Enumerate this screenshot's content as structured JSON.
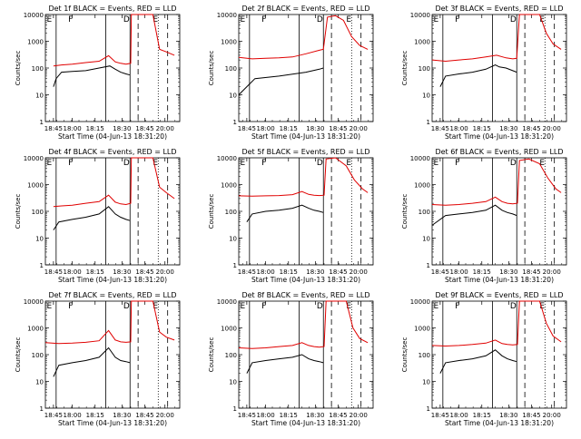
{
  "chart_data": [
    {
      "type": "line",
      "title": "Det 1f  BLACK = Events, RED = LLD",
      "xlabel": "Start Time (04-Jun-13 18:31:20)",
      "ylabel": "Counts/sec",
      "yscale": "log",
      "ylim": [
        1,
        10000
      ],
      "x_ticks": [
        "18:45",
        "18:00",
        "18:15",
        "18:30",
        "18:45",
        "20:00"
      ],
      "y_ticks": [
        "1",
        "10",
        "100",
        "1000",
        "10000"
      ],
      "markers": [
        "E",
        "F",
        "D",
        "E"
      ],
      "black": [
        [
          0.06,
          20
        ],
        [
          0.08,
          40
        ],
        [
          0.12,
          70
        ],
        [
          0.2,
          75
        ],
        [
          0.3,
          80
        ],
        [
          0.4,
          100
        ],
        [
          0.48,
          120
        ],
        [
          0.52,
          90
        ],
        [
          0.56,
          70
        ],
        [
          0.6,
          60
        ],
        [
          0.63,
          55
        ]
      ],
      "red": [
        [
          0.06,
          120
        ],
        [
          0.12,
          130
        ],
        [
          0.2,
          140
        ],
        [
          0.3,
          160
        ],
        [
          0.4,
          180
        ],
        [
          0.47,
          290
        ],
        [
          0.52,
          170
        ],
        [
          0.56,
          150
        ],
        [
          0.6,
          140
        ],
        [
          0.635,
          150
        ],
        [
          0.64,
          10000
        ],
        [
          0.8,
          10000
        ],
        [
          0.85,
          500
        ],
        [
          0.9,
          400
        ],
        [
          0.96,
          300
        ]
      ]
    },
    {
      "type": "line",
      "title": "Det 2f  BLACK = Events, RED = LLD",
      "xlabel": "Start Time (04-Jun-13 18:31:20)",
      "ylabel": "Counts/sec",
      "yscale": "log",
      "ylim": [
        1,
        10000
      ],
      "x_ticks": [
        "18:45",
        "18:00",
        "18:15",
        "18:30",
        "18:45",
        "20:00"
      ],
      "y_ticks": [
        "1",
        "10",
        "100",
        "1000",
        "10000"
      ],
      "markers": [
        "E",
        "F",
        "D",
        "E"
      ],
      "black": [
        [
          0.0,
          10
        ],
        [
          0.06,
          20
        ],
        [
          0.12,
          40
        ],
        [
          0.3,
          50
        ],
        [
          0.5,
          70
        ],
        [
          0.6,
          90
        ],
        [
          0.63,
          100
        ]
      ],
      "red": [
        [
          0.0,
          250
        ],
        [
          0.1,
          220
        ],
        [
          0.2,
          230
        ],
        [
          0.3,
          240
        ],
        [
          0.4,
          260
        ],
        [
          0.5,
          340
        ],
        [
          0.6,
          460
        ],
        [
          0.63,
          500
        ],
        [
          0.66,
          8000
        ],
        [
          0.72,
          9000
        ],
        [
          0.78,
          6000
        ],
        [
          0.84,
          1500
        ],
        [
          0.9,
          700
        ],
        [
          0.96,
          500
        ]
      ]
    },
    {
      "type": "line",
      "title": "Det 3f  BLACK = Events, RED = LLD",
      "xlabel": "Start Time (04-Jun-13 18:31:20)",
      "ylabel": "Counts/sec",
      "yscale": "log",
      "ylim": [
        1,
        10000
      ],
      "x_ticks": [
        "18:45",
        "18:00",
        "18:15",
        "18:30",
        "18:45",
        "20:00"
      ],
      "y_ticks": [
        "1",
        "10",
        "100",
        "1000",
        "10000"
      ],
      "markers": [
        "E",
        "F",
        "D",
        "E"
      ],
      "black": [
        [
          0.06,
          20
        ],
        [
          0.1,
          50
        ],
        [
          0.2,
          60
        ],
        [
          0.3,
          70
        ],
        [
          0.4,
          90
        ],
        [
          0.47,
          130
        ],
        [
          0.5,
          110
        ],
        [
          0.55,
          100
        ],
        [
          0.6,
          80
        ],
        [
          0.63,
          70
        ]
      ],
      "red": [
        [
          0.0,
          200
        ],
        [
          0.1,
          180
        ],
        [
          0.2,
          200
        ],
        [
          0.3,
          220
        ],
        [
          0.4,
          260
        ],
        [
          0.48,
          300
        ],
        [
          0.55,
          240
        ],
        [
          0.6,
          220
        ],
        [
          0.63,
          230
        ],
        [
          0.65,
          10000
        ],
        [
          0.8,
          10000
        ],
        [
          0.85,
          2000
        ],
        [
          0.9,
          800
        ],
        [
          0.96,
          500
        ]
      ]
    },
    {
      "type": "line",
      "title": "Det 4f  BLACK = Events, RED = LLD",
      "xlabel": "Start Time (04-Jun-13 18:31:20)",
      "ylabel": "Counts/sec",
      "yscale": "log",
      "ylim": [
        1,
        10000
      ],
      "x_ticks": [
        "18:45",
        "18:00",
        "18:15",
        "18:30",
        "18:45",
        "20:00"
      ],
      "y_ticks": [
        "1",
        "10",
        "100",
        "1000",
        "10000"
      ],
      "markers": [
        "E",
        "F",
        "D",
        "E"
      ],
      "black": [
        [
          0.06,
          20
        ],
        [
          0.1,
          40
        ],
        [
          0.2,
          50
        ],
        [
          0.3,
          60
        ],
        [
          0.4,
          80
        ],
        [
          0.47,
          150
        ],
        [
          0.52,
          80
        ],
        [
          0.56,
          60
        ],
        [
          0.6,
          50
        ],
        [
          0.63,
          45
        ]
      ],
      "red": [
        [
          0.06,
          150
        ],
        [
          0.12,
          160
        ],
        [
          0.2,
          170
        ],
        [
          0.3,
          200
        ],
        [
          0.4,
          230
        ],
        [
          0.47,
          400
        ],
        [
          0.52,
          220
        ],
        [
          0.56,
          190
        ],
        [
          0.6,
          180
        ],
        [
          0.635,
          200
        ],
        [
          0.64,
          10000
        ],
        [
          0.8,
          10000
        ],
        [
          0.85,
          800
        ],
        [
          0.9,
          500
        ],
        [
          0.96,
          300
        ]
      ]
    },
    {
      "type": "line",
      "title": "Det 5f  BLACK = Events, RED = LLD",
      "xlabel": "Start Time (04-Jun-13 18:31:20)",
      "ylabel": "Counts/sec",
      "yscale": "log",
      "ylim": [
        1,
        10000
      ],
      "x_ticks": [
        "18:45",
        "18:00",
        "18:15",
        "18:30",
        "18:45",
        "20:00"
      ],
      "y_ticks": [
        "1",
        "10",
        "100",
        "1000",
        "10000"
      ],
      "markers": [
        "E",
        "F",
        "D",
        "E"
      ],
      "black": [
        [
          0.06,
          40
        ],
        [
          0.1,
          80
        ],
        [
          0.2,
          100
        ],
        [
          0.3,
          110
        ],
        [
          0.4,
          130
        ],
        [
          0.47,
          170
        ],
        [
          0.52,
          130
        ],
        [
          0.56,
          110
        ],
        [
          0.6,
          100
        ],
        [
          0.63,
          90
        ]
      ],
      "red": [
        [
          0.0,
          380
        ],
        [
          0.1,
          370
        ],
        [
          0.2,
          380
        ],
        [
          0.3,
          390
        ],
        [
          0.4,
          420
        ],
        [
          0.47,
          550
        ],
        [
          0.52,
          430
        ],
        [
          0.56,
          400
        ],
        [
          0.6,
          390
        ],
        [
          0.635,
          400
        ],
        [
          0.65,
          9000
        ],
        [
          0.72,
          10000
        ],
        [
          0.8,
          5000
        ],
        [
          0.86,
          1500
        ],
        [
          0.92,
          700
        ],
        [
          0.96,
          500
        ]
      ]
    },
    {
      "type": "line",
      "title": "Det 6f  BLACK = Events, RED = LLD",
      "xlabel": "Start Time (04-Jun-13 18:31:20)",
      "ylabel": "Counts/sec",
      "yscale": "log",
      "ylim": [
        1,
        10000
      ],
      "x_ticks": [
        "18:45",
        "18:00",
        "18:15",
        "18:30",
        "18:45",
        "20:00"
      ],
      "y_ticks": [
        "1",
        "10",
        "100",
        "1000",
        "10000"
      ],
      "markers": [
        "E",
        "F",
        "D",
        "E"
      ],
      "black": [
        [
          0.0,
          30
        ],
        [
          0.1,
          70
        ],
        [
          0.2,
          80
        ],
        [
          0.3,
          90
        ],
        [
          0.4,
          110
        ],
        [
          0.47,
          170
        ],
        [
          0.52,
          110
        ],
        [
          0.56,
          90
        ],
        [
          0.6,
          80
        ],
        [
          0.63,
          70
        ]
      ],
      "red": [
        [
          0.0,
          180
        ],
        [
          0.1,
          170
        ],
        [
          0.2,
          180
        ],
        [
          0.3,
          200
        ],
        [
          0.4,
          230
        ],
        [
          0.47,
          340
        ],
        [
          0.52,
          230
        ],
        [
          0.56,
          200
        ],
        [
          0.6,
          190
        ],
        [
          0.635,
          200
        ],
        [
          0.65,
          8000
        ],
        [
          0.72,
          9000
        ],
        [
          0.8,
          6000
        ],
        [
          0.86,
          1800
        ],
        [
          0.92,
          700
        ],
        [
          0.96,
          500
        ]
      ]
    },
    {
      "type": "line",
      "title": "Det 7f  BLACK = Events, RED = LLD",
      "xlabel": "Start Time (04-Jun-13 18:31:20)",
      "ylabel": "Counts/sec",
      "yscale": "log",
      "ylim": [
        1,
        10000
      ],
      "x_ticks": [
        "18:45",
        "18:00",
        "18:15",
        "18:30",
        "18:45",
        "20:00"
      ],
      "y_ticks": [
        "1",
        "10",
        "100",
        "1000",
        "10000"
      ],
      "markers": [
        "E",
        "F",
        "D",
        "E"
      ],
      "black": [
        [
          0.06,
          15
        ],
        [
          0.1,
          40
        ],
        [
          0.2,
          50
        ],
        [
          0.3,
          60
        ],
        [
          0.4,
          80
        ],
        [
          0.47,
          180
        ],
        [
          0.52,
          80
        ],
        [
          0.56,
          60
        ],
        [
          0.6,
          55
        ],
        [
          0.63,
          50
        ]
      ],
      "red": [
        [
          0.0,
          280
        ],
        [
          0.1,
          260
        ],
        [
          0.2,
          270
        ],
        [
          0.3,
          290
        ],
        [
          0.4,
          330
        ],
        [
          0.47,
          800
        ],
        [
          0.52,
          350
        ],
        [
          0.56,
          300
        ],
        [
          0.6,
          290
        ],
        [
          0.635,
          300
        ],
        [
          0.64,
          10000
        ],
        [
          0.8,
          10000
        ],
        [
          0.85,
          700
        ],
        [
          0.9,
          450
        ],
        [
          0.96,
          350
        ]
      ]
    },
    {
      "type": "line",
      "title": "Det 8f  BLACK = Events, RED = LLD",
      "xlabel": "Start Time (04-Jun-13 18:31:20)",
      "ylabel": "Counts/sec",
      "yscale": "log",
      "ylim": [
        1,
        10000
      ],
      "x_ticks": [
        "18:45",
        "18:00",
        "18:15",
        "18:30",
        "18:45",
        "20:00"
      ],
      "y_ticks": [
        "1",
        "10",
        "100",
        "1000",
        "10000"
      ],
      "markers": [
        "E",
        "F",
        "D",
        "E"
      ],
      "black": [
        [
          0.06,
          20
        ],
        [
          0.1,
          50
        ],
        [
          0.2,
          60
        ],
        [
          0.3,
          70
        ],
        [
          0.4,
          80
        ],
        [
          0.47,
          100
        ],
        [
          0.52,
          70
        ],
        [
          0.56,
          60
        ],
        [
          0.6,
          55
        ],
        [
          0.63,
          50
        ]
      ],
      "red": [
        [
          0.0,
          180
        ],
        [
          0.1,
          170
        ],
        [
          0.2,
          180
        ],
        [
          0.3,
          200
        ],
        [
          0.4,
          220
        ],
        [
          0.47,
          280
        ],
        [
          0.52,
          220
        ],
        [
          0.56,
          200
        ],
        [
          0.6,
          190
        ],
        [
          0.635,
          200
        ],
        [
          0.65,
          10000
        ],
        [
          0.8,
          10000
        ],
        [
          0.85,
          1000
        ],
        [
          0.9,
          400
        ],
        [
          0.96,
          280
        ]
      ]
    },
    {
      "type": "line",
      "title": "Det 9f  BLACK = Events, RED = LLD",
      "xlabel": "Start Time (04-Jun-13 18:31:20)",
      "ylabel": "Counts/sec",
      "yscale": "log",
      "ylim": [
        1,
        10000
      ],
      "x_ticks": [
        "18:45",
        "18:00",
        "18:15",
        "18:30",
        "18:45",
        "20:00"
      ],
      "y_ticks": [
        "1",
        "10",
        "100",
        "1000",
        "10000"
      ],
      "markers": [
        "E",
        "F",
        "D",
        "E"
      ],
      "black": [
        [
          0.06,
          20
        ],
        [
          0.1,
          50
        ],
        [
          0.2,
          60
        ],
        [
          0.3,
          70
        ],
        [
          0.4,
          90
        ],
        [
          0.47,
          150
        ],
        [
          0.52,
          90
        ],
        [
          0.56,
          70
        ],
        [
          0.6,
          60
        ],
        [
          0.63,
          55
        ]
      ],
      "red": [
        [
          0.0,
          220
        ],
        [
          0.1,
          210
        ],
        [
          0.2,
          220
        ],
        [
          0.3,
          240
        ],
        [
          0.4,
          270
        ],
        [
          0.47,
          350
        ],
        [
          0.52,
          260
        ],
        [
          0.56,
          240
        ],
        [
          0.6,
          230
        ],
        [
          0.635,
          240
        ],
        [
          0.65,
          10000
        ],
        [
          0.8,
          10000
        ],
        [
          0.85,
          1500
        ],
        [
          0.9,
          500
        ],
        [
          0.96,
          300
        ]
      ]
    }
  ],
  "colors": {
    "events": "#000000",
    "lld": "#e00000",
    "background": "#ffffff"
  }
}
